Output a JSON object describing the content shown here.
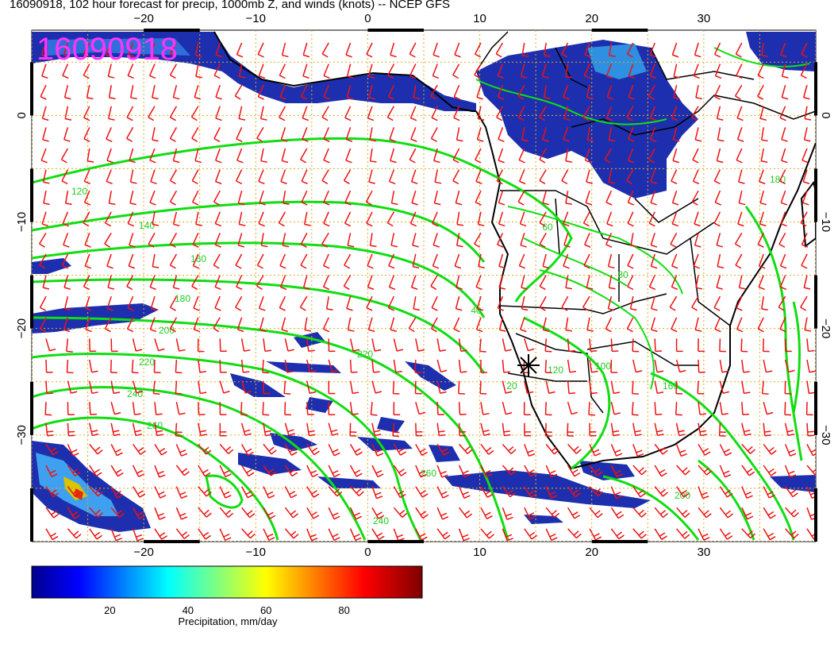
{
  "title": "16090918, 102 hour forecast for precip, 1000mb Z, and winds (knots) -- NCEP GFS",
  "stamp": "16090918",
  "map": {
    "lon_min": -30,
    "lon_max": 40,
    "lat_min": -40,
    "lat_max": 8,
    "lon_ticks": [
      -20,
      -10,
      0,
      10,
      20,
      30
    ],
    "lon_tick_labels": [
      "−20",
      "−10",
      "0",
      "10",
      "20",
      "30"
    ],
    "lat_ticks": [
      0,
      -10,
      -20,
      -30
    ],
    "lat_tick_labels": [
      "0",
      "−10",
      "−20",
      "−30"
    ],
    "contour_labels": [
      "120",
      "140",
      "160",
      "180",
      "200",
      "220",
      "240",
      "260",
      "40",
      "60",
      "80",
      "100",
      "120",
      "20",
      "160",
      "180",
      "200",
      "220",
      "240",
      "260"
    ],
    "colors": {
      "wind_barbs": "#ee1111",
      "contours": "#11dd11",
      "coast": "#000000",
      "grid": "#ddaa22"
    }
  },
  "colorbar": {
    "label": "Precipitation, mm/day",
    "ticks": [
      "20",
      "40",
      "60",
      "80"
    ],
    "range": [
      0,
      100
    ],
    "colormap": "jet"
  }
}
